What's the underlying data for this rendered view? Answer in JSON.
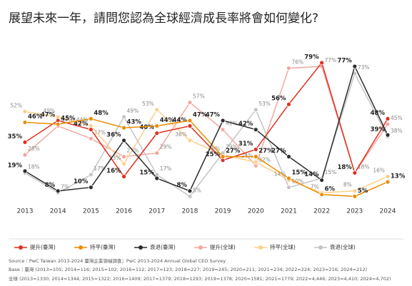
{
  "chart_data": {
    "type": "line",
    "title": "展望未來一年，請問您認為全球經濟成長率將會如何變化?",
    "categories": [
      "2013",
      "2014",
      "2015",
      "2016",
      "2017",
      "2018",
      "2019",
      "2020",
      "2021",
      "2022",
      "2023",
      "2024"
    ],
    "series": [
      {
        "name": "提升(臺灣)",
        "color": "#e0301e",
        "values": [
          35,
          47,
          42,
          16,
          40,
          44,
          25,
          31,
          56,
          79,
          18,
          48
        ],
        "value_labels": [
          "35%",
          "47%",
          "42%",
          "16%",
          "40%",
          "44%",
          "25%",
          "31%",
          "56%",
          "79%",
          "18%",
          "48%"
        ]
      },
      {
        "name": "持平(臺灣)",
        "color": "#eb8c00",
        "values": [
          46,
          45,
          48,
          43,
          44,
          47,
          27,
          27,
          15,
          6,
          5,
          13
        ],
        "value_labels": [
          "46%",
          "45%",
          "48%",
          "43%",
          "44%",
          "47%",
          "27%",
          "27%",
          "15%",
          "6%",
          "5%",
          "13%"
        ]
      },
      {
        "name": "衰退(臺灣)",
        "color": "#2d2d2d",
        "values": [
          19,
          8,
          10,
          36,
          15,
          8,
          47,
          42,
          27,
          14,
          77,
          39
        ],
        "value_labels": [
          "19%",
          "8%",
          "10%",
          "36%",
          "15%",
          "8%",
          "47%",
          "42%",
          "27%",
          "14%",
          "77%",
          "39%"
        ]
      },
      {
        "name": "提升(全球)",
        "color": "#f2a7a0",
        "values": [
          28,
          44,
          37,
          27,
          29,
          57,
          42,
          22,
          76,
          77,
          18,
          45
        ],
        "value_labels": [
          "28%",
          "44%",
          "37%",
          "27%",
          "29%",
          "57%",
          "42%",
          "22%",
          "76%",
          "77%",
          "18%",
          "45%"
        ]
      },
      {
        "name": "持平(全球)",
        "color": "#ffd08a",
        "values": [
          52,
          49,
          44,
          23,
          53,
          36,
          28,
          24,
          14,
          7,
          8,
          16
        ],
        "value_labels": [
          "52%",
          "49%",
          "44%",
          "23%",
          "53%",
          "36%",
          "28%",
          "24%",
          "14%",
          "7%",
          "8%",
          "16%"
        ]
      },
      {
        "name": "衰退(全球)",
        "color": "#c4c4c4",
        "values": [
          18,
          7,
          17,
          49,
          17,
          5,
          29,
          53,
          10,
          15,
          73,
          38
        ],
        "value_labels": [
          "18%",
          "7%",
          "17%",
          "49%",
          "17%",
          "5%",
          "29%",
          "53%",
          "10%",
          "15%",
          "73%",
          "38%"
        ]
      }
    ],
    "notes": [
      "Source｜PwC Taiwan 2013-2024 臺灣企業領袖調查；PwC 2013-2024 Annual Global CEO Survey",
      "Base｜臺灣 (2013=105; 2014=116; 2015=102; 2016=112; 2017=123; 2018=227; 2019=245; 2020=211; 2021=234; 2022=224; 2023=216; 2024=212)",
      "全球 (2013=1330; 2014=1344; 2015=1322; 2016=1409; 2017=1379; 2018=1293; 2019=1378; 2020=1581; 2021=1779; 2022=4,446; 2023=4,410; 2024=4,702)"
    ]
  }
}
